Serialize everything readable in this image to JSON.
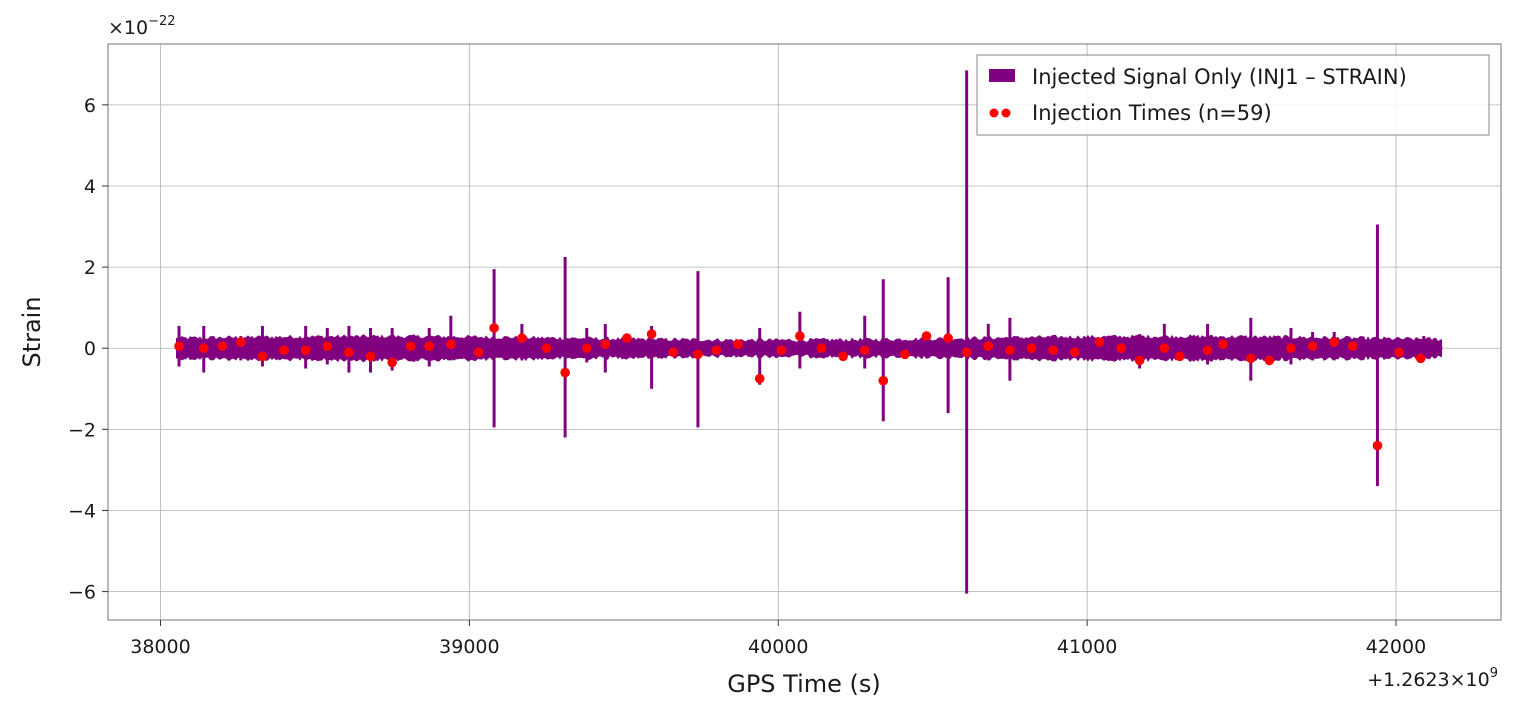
{
  "chart_data": {
    "type": "line",
    "xlabel": "GPS Time (s)",
    "ylabel": "Strain",
    "x_offset_label": "+1.2623×10",
    "x_offset_exponent": "9",
    "y_multiplier_label": "×10",
    "y_multiplier_exponent": "−22",
    "xlim": [
      37830,
      42340
    ],
    "ylim": [
      -6.7,
      7.5
    ],
    "xticks": [
      38000,
      39000,
      40000,
      41000,
      42000
    ],
    "xtick_labels": [
      "38000",
      "39000",
      "40000",
      "41000",
      "42000"
    ],
    "yticks": [
      -6,
      -4,
      -2,
      0,
      2,
      4,
      6
    ],
    "ytick_labels": [
      "−6",
      "−4",
      "−2",
      "0",
      "2",
      "4",
      "6"
    ],
    "grid": true,
    "legend_position": "top-right",
    "series": [
      {
        "name": "Injected Signal Only (INJ1 – STRAIN)",
        "color": "#800080",
        "kind": "line",
        "x_start": 38050,
        "x_end": 42150,
        "base_band": 0.25,
        "spikes": [
          {
            "x": 38060,
            "max": 0.55,
            "min": -0.45
          },
          {
            "x": 38140,
            "max": 0.55,
            "min": -0.6
          },
          {
            "x": 38260,
            "max": 0.3,
            "min": -0.3
          },
          {
            "x": 38330,
            "max": 0.55,
            "min": -0.45
          },
          {
            "x": 38470,
            "max": 0.55,
            "min": -0.5
          },
          {
            "x": 38540,
            "max": 0.5,
            "min": -0.4
          },
          {
            "x": 38610,
            "max": 0.55,
            "min": -0.6
          },
          {
            "x": 38680,
            "max": 0.5,
            "min": -0.6
          },
          {
            "x": 38750,
            "max": 0.5,
            "min": -0.55
          },
          {
            "x": 38870,
            "max": 0.5,
            "min": -0.45
          },
          {
            "x": 38940,
            "max": 0.8,
            "min": -0.3
          },
          {
            "x": 39080,
            "max": 1.95,
            "min": -1.95
          },
          {
            "x": 39170,
            "max": 0.6,
            "min": -0.3
          },
          {
            "x": 39310,
            "max": 2.25,
            "min": -2.2
          },
          {
            "x": 39380,
            "max": 0.5,
            "min": -0.35
          },
          {
            "x": 39440,
            "max": 0.6,
            "min": -0.6
          },
          {
            "x": 39590,
            "max": 0.55,
            "min": -1.0
          },
          {
            "x": 39740,
            "max": 1.9,
            "min": -1.95
          },
          {
            "x": 39940,
            "max": 0.5,
            "min": -0.9
          },
          {
            "x": 40070,
            "max": 0.9,
            "min": -0.5
          },
          {
            "x": 40280,
            "max": 0.8,
            "min": -0.5
          },
          {
            "x": 40340,
            "max": 1.7,
            "min": -1.8
          },
          {
            "x": 40550,
            "max": 1.75,
            "min": -1.6
          },
          {
            "x": 40610,
            "max": 6.85,
            "min": -6.05
          },
          {
            "x": 40680,
            "max": 0.6,
            "min": -0.3
          },
          {
            "x": 40750,
            "max": 0.75,
            "min": -0.8
          },
          {
            "x": 41170,
            "max": 0.35,
            "min": -0.5
          },
          {
            "x": 41250,
            "max": 0.6,
            "min": -0.3
          },
          {
            "x": 41390,
            "max": 0.6,
            "min": -0.4
          },
          {
            "x": 41530,
            "max": 0.75,
            "min": -0.8
          },
          {
            "x": 41660,
            "max": 0.5,
            "min": -0.4
          },
          {
            "x": 41730,
            "max": 0.4,
            "min": -0.3
          },
          {
            "x": 41800,
            "max": 0.4,
            "min": -0.3
          },
          {
            "x": 41940,
            "max": 3.05,
            "min": -3.4
          },
          {
            "x": 42090,
            "max": 0.3,
            "min": -0.3
          }
        ]
      },
      {
        "name": "Injection Times (n=59)",
        "color": "#ff0000",
        "kind": "scatter",
        "x": [
          38060,
          38140,
          38200,
          38260,
          38330,
          38400,
          38470,
          38540,
          38610,
          38680,
          38750,
          38810,
          38870,
          38940,
          39030,
          39080,
          39170,
          39250,
          39310,
          39380,
          39440,
          39510,
          39590,
          39660,
          39740,
          39800,
          39870,
          39940,
          40010,
          40070,
          40140,
          40210,
          40280,
          40340,
          40410,
          40480,
          40550,
          40610,
          40680,
          40750,
          40820,
          40890,
          40960,
          41040,
          41110,
          41170,
          41250,
          41300,
          41390,
          41440,
          41530,
          41590,
          41660,
          41730,
          41800,
          41860,
          41940,
          42010,
          42080
        ],
        "y": [
          0.05,
          0.0,
          0.05,
          0.15,
          -0.2,
          -0.05,
          -0.05,
          0.05,
          -0.1,
          -0.2,
          -0.35,
          0.05,
          0.05,
          0.1,
          -0.1,
          0.5,
          0.25,
          0.0,
          -0.6,
          0.0,
          0.1,
          0.25,
          0.35,
          -0.1,
          -0.15,
          -0.05,
          0.1,
          -0.75,
          -0.05,
          0.3,
          0.0,
          -0.2,
          -0.05,
          -0.8,
          -0.15,
          0.3,
          0.25,
          -0.1,
          0.05,
          -0.05,
          0.0,
          -0.05,
          -0.1,
          0.15,
          0.0,
          -0.3,
          0.0,
          -0.2,
          -0.05,
          0.1,
          -0.25,
          -0.3,
          0.0,
          0.05,
          0.15,
          0.05,
          -2.4,
          -0.1,
          -0.25
        ]
      }
    ]
  }
}
